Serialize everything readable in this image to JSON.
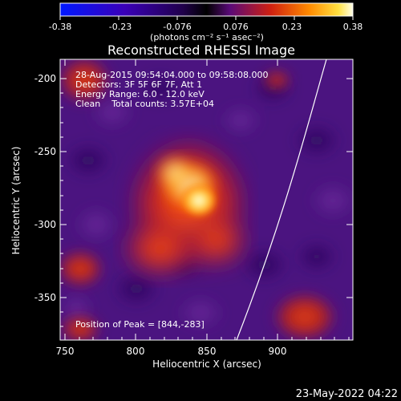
{
  "colorbar": {
    "ticks": [
      "-0.38",
      "-0.23",
      "-0.076",
      "0.076",
      "0.23",
      "0.38"
    ],
    "units": "(photons cm⁻² s⁻¹ asec⁻²)",
    "colors": [
      "#0018ff",
      "#3a00b8",
      "#2a006a",
      "#000000",
      "#5a0a78",
      "#d02010",
      "#ff8a00",
      "#ffe040",
      "#ffffe8"
    ]
  },
  "title": "Reconstructed RHESSI Image",
  "info": {
    "line1": "28-Aug-2015 09:54:04.000 to 09:58:08.000",
    "line2": "Detectors: 3F 5F 6F 7F, Att 1",
    "line3": "Energy Range: 6.0 - 12.0 keV",
    "line4": "Clean    Total counts: 3.57E+04"
  },
  "peak_label": "Position of Peak = [844,-283]",
  "xaxis": {
    "label": "Heliocentric X (arcsec)",
    "ticks": [
      "750",
      "800",
      "850",
      "900"
    ]
  },
  "yaxis": {
    "label": "Heliocentric Y (arcsec)",
    "ticks": [
      "-200",
      "-250",
      "-300",
      "-350"
    ]
  },
  "footer_date": "23-May-2022 04:22",
  "image": {
    "background_color": "#4b1480",
    "limb_color": "#ffffff"
  }
}
